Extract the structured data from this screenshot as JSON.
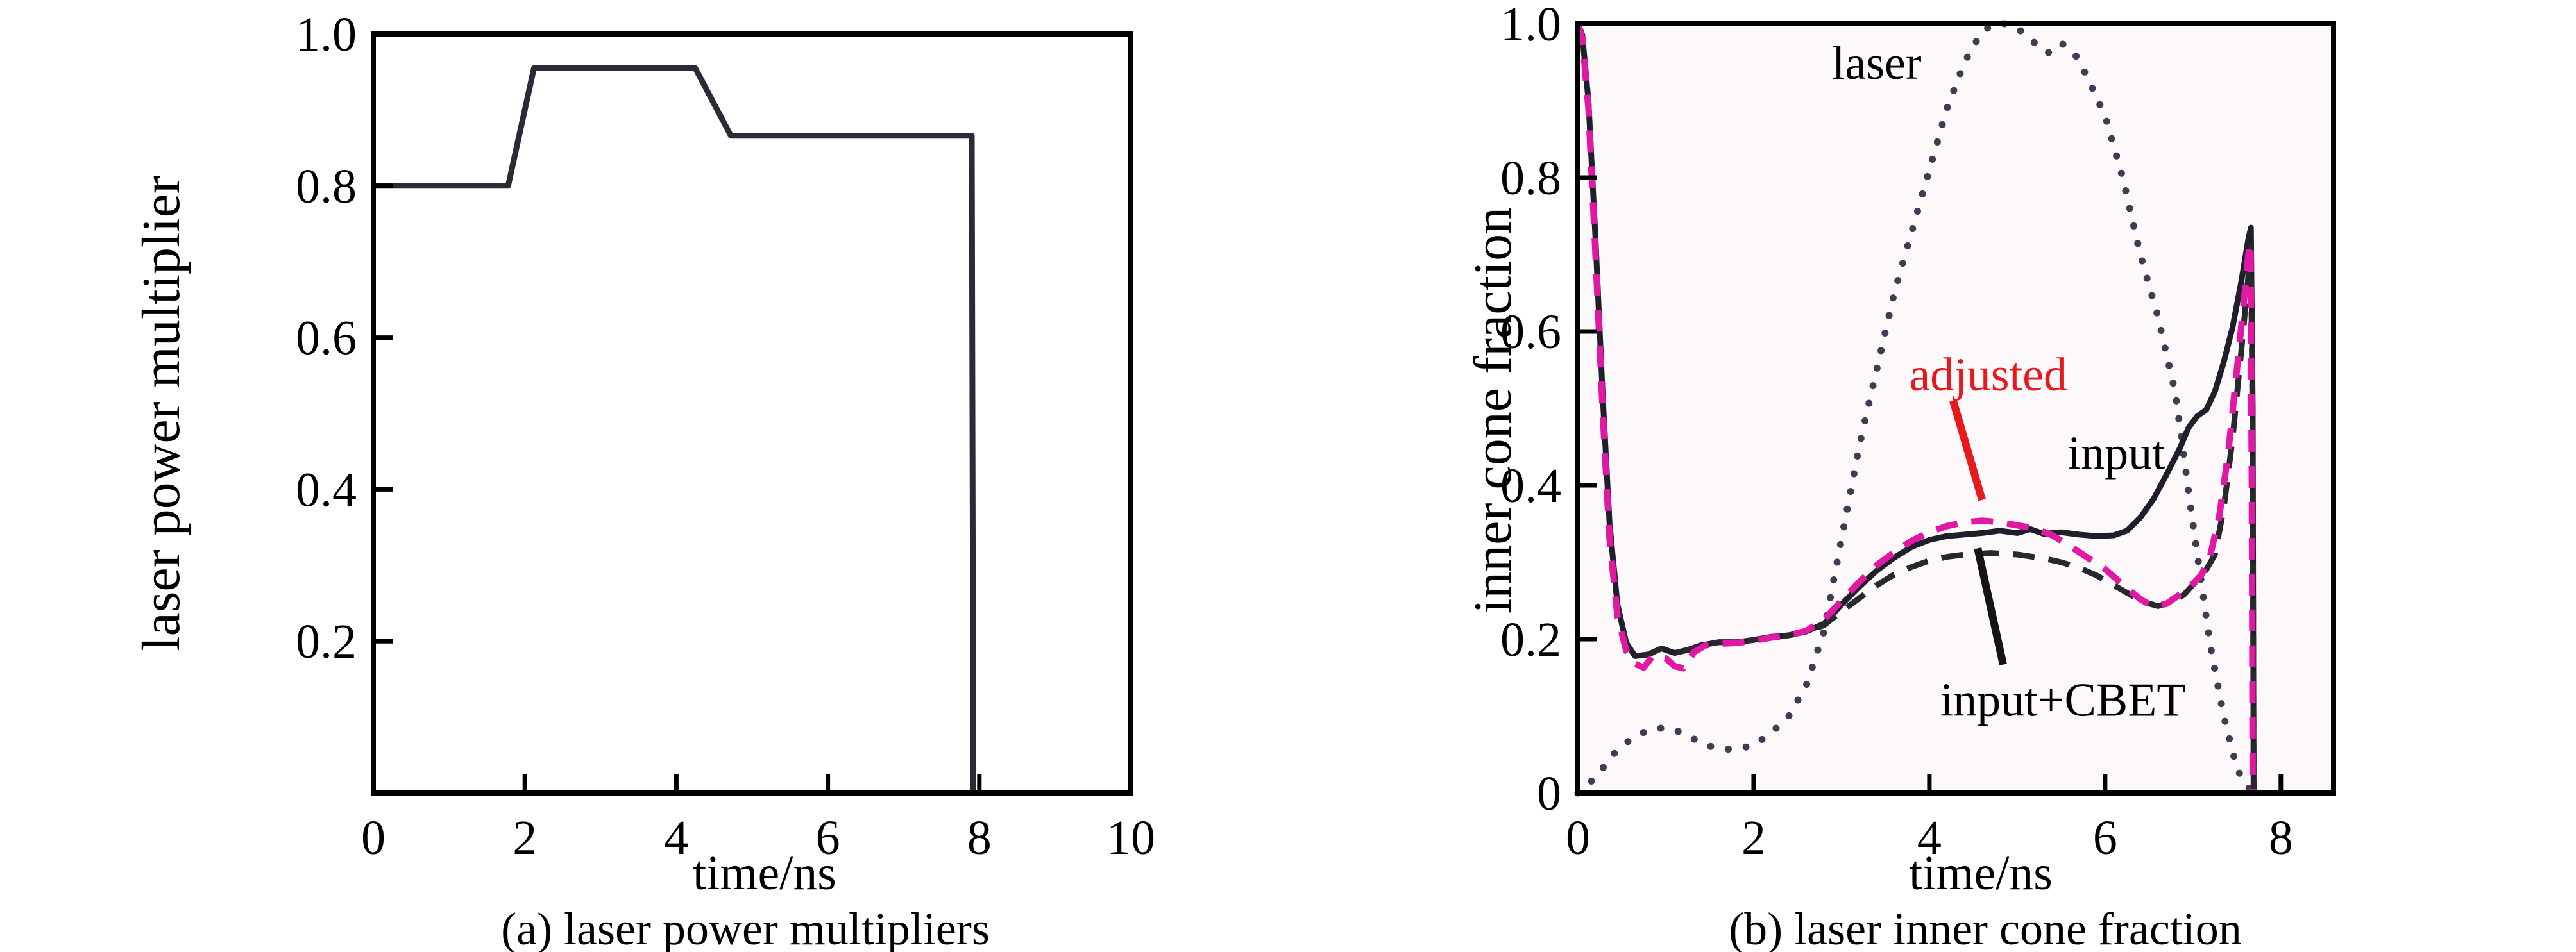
{
  "page": {
    "background": "#ffffff"
  },
  "chart_data": [
    {
      "id": "a",
      "type": "line",
      "title": "(a) laser power multipliers",
      "caption": "(a) laser power multipliers",
      "xlabel": "time/ns",
      "ylabel": "laser power multiplier",
      "xlim": [
        0,
        10
      ],
      "ylim": [
        0,
        1.0
      ],
      "xticks": {
        "values": [
          0,
          2,
          4,
          6,
          8,
          10
        ],
        "labels": [
          "0",
          "2",
          "4",
          "6",
          "8",
          "10"
        ]
      },
      "yticks": {
        "values": [
          0.2,
          0.4,
          0.6,
          0.8,
          1.0
        ],
        "labels": [
          "0.2",
          "0.4",
          "0.6",
          "0.8",
          "1.0"
        ]
      },
      "grid": false,
      "legend": "none",
      "plot_bg": "#ffffff",
      "axis_color": "#000000",
      "series": [
        {
          "name": "laser power multiplier",
          "line": "solid",
          "color": "#2b2b38",
          "width": 9,
          "points": [
            [
              0,
              0.8
            ],
            [
              1.78,
              0.8
            ],
            [
              2.12,
              0.955
            ],
            [
              4.25,
              0.955
            ],
            [
              4.72,
              0.866
            ],
            [
              7.9,
              0.866
            ],
            [
              7.92,
              0.0
            ],
            [
              10.0,
              0.0
            ]
          ]
        }
      ],
      "annotations": []
    },
    {
      "id": "b",
      "type": "line",
      "title": "(b) laser inner cone fraction",
      "caption": "(b) laser inner cone fraction",
      "xlabel": "time/ns",
      "ylabel": "inner cone fraction",
      "xlim": [
        0,
        8.6
      ],
      "ylim": [
        0,
        1.0
      ],
      "xticks": {
        "values": [
          0,
          2,
          4,
          6,
          8
        ],
        "labels": [
          "0",
          "2",
          "4",
          "6",
          "8"
        ]
      },
      "yticks": {
        "values": [
          0,
          0.2,
          0.4,
          0.6,
          0.8,
          1.0
        ],
        "labels": [
          "0",
          "0.2",
          "0.4",
          "0.6",
          "0.8",
          "1.0"
        ]
      },
      "grid": false,
      "legend": "inline-annotations",
      "plot_bg": "#fdf8fa",
      "axis_color": "#000000",
      "series": [
        {
          "name": "laser",
          "line": "dotted",
          "color": "#3e3e52",
          "width": 11,
          "points": [
            [
              0,
              0
            ],
            [
              0.2,
              0.02
            ],
            [
              0.4,
              0.05
            ],
            [
              0.6,
              0.07
            ],
            [
              0.8,
              0.082
            ],
            [
              1.0,
              0.085
            ],
            [
              1.2,
              0.078
            ],
            [
              1.4,
              0.065
            ],
            [
              1.6,
              0.057
            ],
            [
              1.8,
              0.057
            ],
            [
              2.0,
              0.062
            ],
            [
              2.2,
              0.078
            ],
            [
              2.4,
              0.1
            ],
            [
              2.6,
              0.14
            ],
            [
              2.8,
              0.21
            ],
            [
              3.0,
              0.33
            ],
            [
              3.2,
              0.45
            ],
            [
              3.4,
              0.55
            ],
            [
              3.6,
              0.65
            ],
            [
              3.8,
              0.73
            ],
            [
              4.0,
              0.81
            ],
            [
              4.2,
              0.89
            ],
            [
              4.4,
              0.95
            ],
            [
              4.6,
              0.99
            ],
            [
              4.75,
              1.0
            ],
            [
              4.9,
              1.0
            ],
            [
              5.05,
              0.99
            ],
            [
              5.2,
              0.975
            ],
            [
              5.35,
              0.962
            ],
            [
              5.5,
              0.975
            ],
            [
              5.65,
              0.962
            ],
            [
              5.8,
              0.93
            ],
            [
              6.0,
              0.88
            ],
            [
              6.2,
              0.8
            ],
            [
              6.4,
              0.7
            ],
            [
              6.6,
              0.62
            ],
            [
              6.8,
              0.52
            ],
            [
              7.0,
              0.35
            ],
            [
              7.1,
              0.27
            ],
            [
              7.2,
              0.19
            ],
            [
              7.35,
              0.1
            ],
            [
              7.5,
              0.032
            ],
            [
              7.6,
              0.01
            ],
            [
              7.7,
              0.0
            ]
          ]
        },
        {
          "name": "input",
          "line": "solid",
          "color": "#1f1f2b",
          "width": 9,
          "points": [
            [
              0,
              1.0
            ],
            [
              0.05,
              0.985
            ],
            [
              0.12,
              0.9
            ],
            [
              0.2,
              0.72
            ],
            [
              0.28,
              0.52
            ],
            [
              0.36,
              0.35
            ],
            [
              0.45,
              0.245
            ],
            [
              0.55,
              0.195
            ],
            [
              0.65,
              0.178
            ],
            [
              0.8,
              0.18
            ],
            [
              0.95,
              0.188
            ],
            [
              1.1,
              0.182
            ],
            [
              1.25,
              0.186
            ],
            [
              1.4,
              0.192
            ],
            [
              1.6,
              0.196
            ],
            [
              1.8,
              0.196
            ],
            [
              2.0,
              0.199
            ],
            [
              2.2,
              0.203
            ],
            [
              2.4,
              0.205
            ],
            [
              2.6,
              0.21
            ],
            [
              2.8,
              0.22
            ],
            [
              3.0,
              0.245
            ],
            [
              3.2,
              0.268
            ],
            [
              3.4,
              0.289
            ],
            [
              3.6,
              0.306
            ],
            [
              3.8,
              0.32
            ],
            [
              4.0,
              0.329
            ],
            [
              4.2,
              0.334
            ],
            [
              4.4,
              0.336
            ],
            [
              4.6,
              0.338
            ],
            [
              4.8,
              0.341
            ],
            [
              5.0,
              0.338
            ],
            [
              5.15,
              0.343
            ],
            [
              5.3,
              0.337
            ],
            [
              5.5,
              0.339
            ],
            [
              5.7,
              0.336
            ],
            [
              5.9,
              0.334
            ],
            [
              6.1,
              0.335
            ],
            [
              6.25,
              0.341
            ],
            [
              6.4,
              0.358
            ],
            [
              6.55,
              0.382
            ],
            [
              6.7,
              0.414
            ],
            [
              6.85,
              0.448
            ],
            [
              6.95,
              0.475
            ],
            [
              7.05,
              0.49
            ],
            [
              7.15,
              0.498
            ],
            [
              7.25,
              0.522
            ],
            [
              7.35,
              0.56
            ],
            [
              7.45,
              0.605
            ],
            [
              7.55,
              0.665
            ],
            [
              7.63,
              0.72
            ],
            [
              7.66,
              0.735
            ],
            [
              7.68,
              0.5
            ],
            [
              7.69,
              0.0
            ],
            [
              8.6,
              0.0
            ]
          ]
        },
        {
          "name": "input+CBET",
          "line": "dashed",
          "color": "#28282f",
          "width": 9,
          "points": [
            [
              0,
              1.0
            ],
            [
              0.05,
              0.985
            ],
            [
              0.12,
              0.9
            ],
            [
              0.2,
              0.72
            ],
            [
              0.28,
              0.52
            ],
            [
              0.36,
              0.35
            ],
            [
              0.45,
              0.245
            ],
            [
              0.55,
              0.195
            ],
            [
              0.65,
              0.178
            ],
            [
              0.8,
              0.18
            ],
            [
              0.95,
              0.188
            ],
            [
              1.1,
              0.182
            ],
            [
              1.25,
              0.186
            ],
            [
              1.4,
              0.192
            ],
            [
              1.6,
              0.196
            ],
            [
              1.8,
              0.196
            ],
            [
              2.0,
              0.199
            ],
            [
              2.2,
              0.203
            ],
            [
              2.4,
              0.205
            ],
            [
              2.6,
              0.21
            ],
            [
              2.8,
              0.218
            ],
            [
              3.0,
              0.236
            ],
            [
              3.2,
              0.253
            ],
            [
              3.4,
              0.27
            ],
            [
              3.6,
              0.284
            ],
            [
              3.8,
              0.294
            ],
            [
              4.0,
              0.302
            ],
            [
              4.2,
              0.307
            ],
            [
              4.4,
              0.31
            ],
            [
              4.7,
              0.312
            ],
            [
              5.0,
              0.31
            ],
            [
              5.3,
              0.305
            ],
            [
              5.5,
              0.3
            ],
            [
              5.7,
              0.293
            ],
            [
              5.9,
              0.283
            ],
            [
              6.1,
              0.27
            ],
            [
              6.3,
              0.257
            ],
            [
              6.45,
              0.248
            ],
            [
              6.6,
              0.243
            ],
            [
              6.75,
              0.247
            ],
            [
              6.9,
              0.258
            ],
            [
              7.05,
              0.277
            ],
            [
              7.15,
              0.29
            ],
            [
              7.25,
              0.31
            ],
            [
              7.35,
              0.37
            ],
            [
              7.45,
              0.46
            ],
            [
              7.55,
              0.575
            ],
            [
              7.62,
              0.66
            ],
            [
              7.66,
              0.71
            ],
            [
              7.68,
              0.45
            ],
            [
              7.69,
              0.0
            ],
            [
              8.55,
              0.0
            ]
          ]
        },
        {
          "name": "adjusted",
          "line": "dashed",
          "color": "#e018a4",
          "width": 10,
          "points": [
            [
              0,
              1.0
            ],
            [
              0.05,
              0.98
            ],
            [
              0.12,
              0.89
            ],
            [
              0.2,
              0.7
            ],
            [
              0.28,
              0.5
            ],
            [
              0.36,
              0.33
            ],
            [
              0.45,
              0.23
            ],
            [
              0.55,
              0.185
            ],
            [
              0.65,
              0.168
            ],
            [
              0.75,
              0.163
            ],
            [
              0.85,
              0.178
            ],
            [
              1.0,
              0.175
            ],
            [
              1.1,
              0.165
            ],
            [
              1.2,
              0.162
            ],
            [
              1.32,
              0.183
            ],
            [
              1.45,
              0.192
            ],
            [
              1.6,
              0.194
            ],
            [
              1.8,
              0.195
            ],
            [
              2.0,
              0.198
            ],
            [
              2.2,
              0.202
            ],
            [
              2.4,
              0.205
            ],
            [
              2.6,
              0.211
            ],
            [
              2.8,
              0.225
            ],
            [
              3.0,
              0.25
            ],
            [
              3.2,
              0.274
            ],
            [
              3.4,
              0.296
            ],
            [
              3.6,
              0.313
            ],
            [
              3.8,
              0.328
            ],
            [
              4.0,
              0.339
            ],
            [
              4.2,
              0.347
            ],
            [
              4.4,
              0.352
            ],
            [
              4.6,
              0.354
            ],
            [
              4.8,
              0.352
            ],
            [
              5.0,
              0.348
            ],
            [
              5.2,
              0.344
            ],
            [
              5.4,
              0.335
            ],
            [
              5.6,
              0.321
            ],
            [
              5.8,
              0.306
            ],
            [
              6.0,
              0.291
            ],
            [
              6.2,
              0.271
            ],
            [
              6.4,
              0.252
            ],
            [
              6.55,
              0.242
            ],
            [
              6.7,
              0.246
            ],
            [
              6.85,
              0.258
            ],
            [
              7.0,
              0.272
            ],
            [
              7.1,
              0.284
            ],
            [
              7.2,
              0.31
            ],
            [
              7.3,
              0.36
            ],
            [
              7.4,
              0.44
            ],
            [
              7.5,
              0.55
            ],
            [
              7.58,
              0.64
            ],
            [
              7.63,
              0.7
            ],
            [
              7.655,
              0.715
            ],
            [
              7.67,
              0.4
            ],
            [
              7.68,
              0.0
            ],
            [
              8.5,
              0.0
            ]
          ]
        }
      ],
      "annotations": [
        {
          "type": "text",
          "text": "laser",
          "color": "#000000",
          "t": 3.4,
          "v": 0.95
        },
        {
          "type": "text",
          "text": "adjusted",
          "color": "#e8191c",
          "t": 4.67,
          "v": 0.545
        },
        {
          "type": "text",
          "text": "input",
          "color": "#000000",
          "t": 6.13,
          "v": 0.443
        },
        {
          "type": "text",
          "text": "input+CBET",
          "color": "#000000",
          "t": 5.52,
          "v": 0.122
        },
        {
          "type": "line",
          "color": "#e8191c",
          "from": [
            4.27,
            0.51
          ],
          "to": [
            4.6,
            0.381
          ]
        },
        {
          "type": "line",
          "color": "#141414",
          "from": [
            4.55,
            0.318
          ],
          "to": [
            4.84,
            0.167
          ]
        }
      ]
    }
  ]
}
